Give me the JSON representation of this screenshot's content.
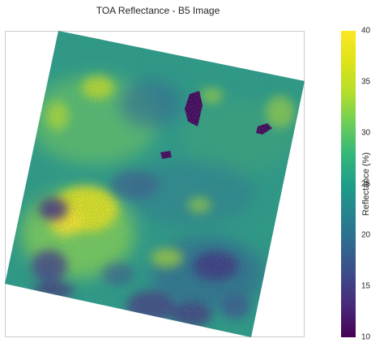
{
  "title": "TOA Reflectance - B5 Image",
  "colorbar": {
    "label": "Reflectance (%)",
    "ticks": [
      "40",
      "35",
      "30",
      "25",
      "20",
      "15",
      "10"
    ],
    "colormap": "viridis",
    "colors": [
      "#440154",
      "#3e4989",
      "#26828e",
      "#1f9e89",
      "#35b779",
      "#6ece58",
      "#b5de2b",
      "#fde725"
    ]
  }
}
